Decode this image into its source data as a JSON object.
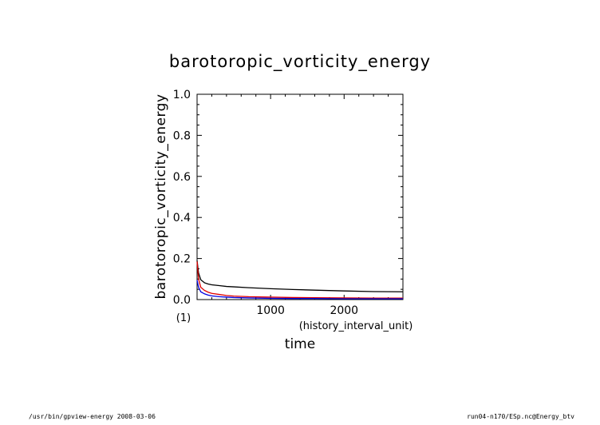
{
  "chart_data": {
    "type": "line",
    "title": "barotoropic_vorticity_energy",
    "ylabel": "barotoropic_vorticity_energy",
    "xlabel": "time",
    "xunit": "(history_interval_unit)",
    "yunit": "(1)",
    "xlim": [
      0,
      2800
    ],
    "ylim": [
      0,
      1.0
    ],
    "xticks": [
      1000,
      2000
    ],
    "yticks": [
      0.0,
      0.2,
      0.4,
      0.6,
      0.8,
      1.0
    ],
    "ytick_labels": [
      "0.0",
      "0.2",
      "0.4",
      "0.6",
      "0.8",
      "1.0"
    ],
    "xtick_labels": [
      "1000",
      "2000"
    ],
    "grid": false,
    "series": [
      {
        "color": "#000000",
        "x": [
          0,
          20,
          50,
          100,
          150,
          200,
          300,
          400,
          500,
          700,
          1000,
          1300,
          1600,
          2000,
          2400,
          2800
        ],
        "y": [
          0.19,
          0.13,
          0.097,
          0.082,
          0.076,
          0.072,
          0.068,
          0.064,
          0.062,
          0.058,
          0.053,
          0.049,
          0.046,
          0.042,
          0.039,
          0.038
        ]
      },
      {
        "color": "#e00000",
        "x": [
          0,
          20,
          50,
          100,
          150,
          200,
          300,
          400,
          500,
          700,
          1000,
          1300,
          1600,
          2000,
          2400,
          2800
        ],
        "y": [
          0.185,
          0.1,
          0.06,
          0.045,
          0.036,
          0.03,
          0.025,
          0.02,
          0.017,
          0.014,
          0.012,
          0.01,
          0.009,
          0.008,
          0.007,
          0.007
        ]
      },
      {
        "color": "#0000e0",
        "x": [
          0,
          20,
          50,
          100,
          150,
          200,
          300,
          400,
          500,
          700,
          1000,
          1300,
          1600,
          2000,
          2400,
          2800
        ],
        "y": [
          0.095,
          0.06,
          0.038,
          0.028,
          0.022,
          0.018,
          0.014,
          0.012,
          0.01,
          0.008,
          0.006,
          0.005,
          0.005,
          0.004,
          0.004,
          0.004
        ]
      }
    ]
  },
  "footer": {
    "left": "/usr/bin/gpview-energy  2008-03-06",
    "right": "run04-n170/ESp.nc@Energy_btv"
  }
}
